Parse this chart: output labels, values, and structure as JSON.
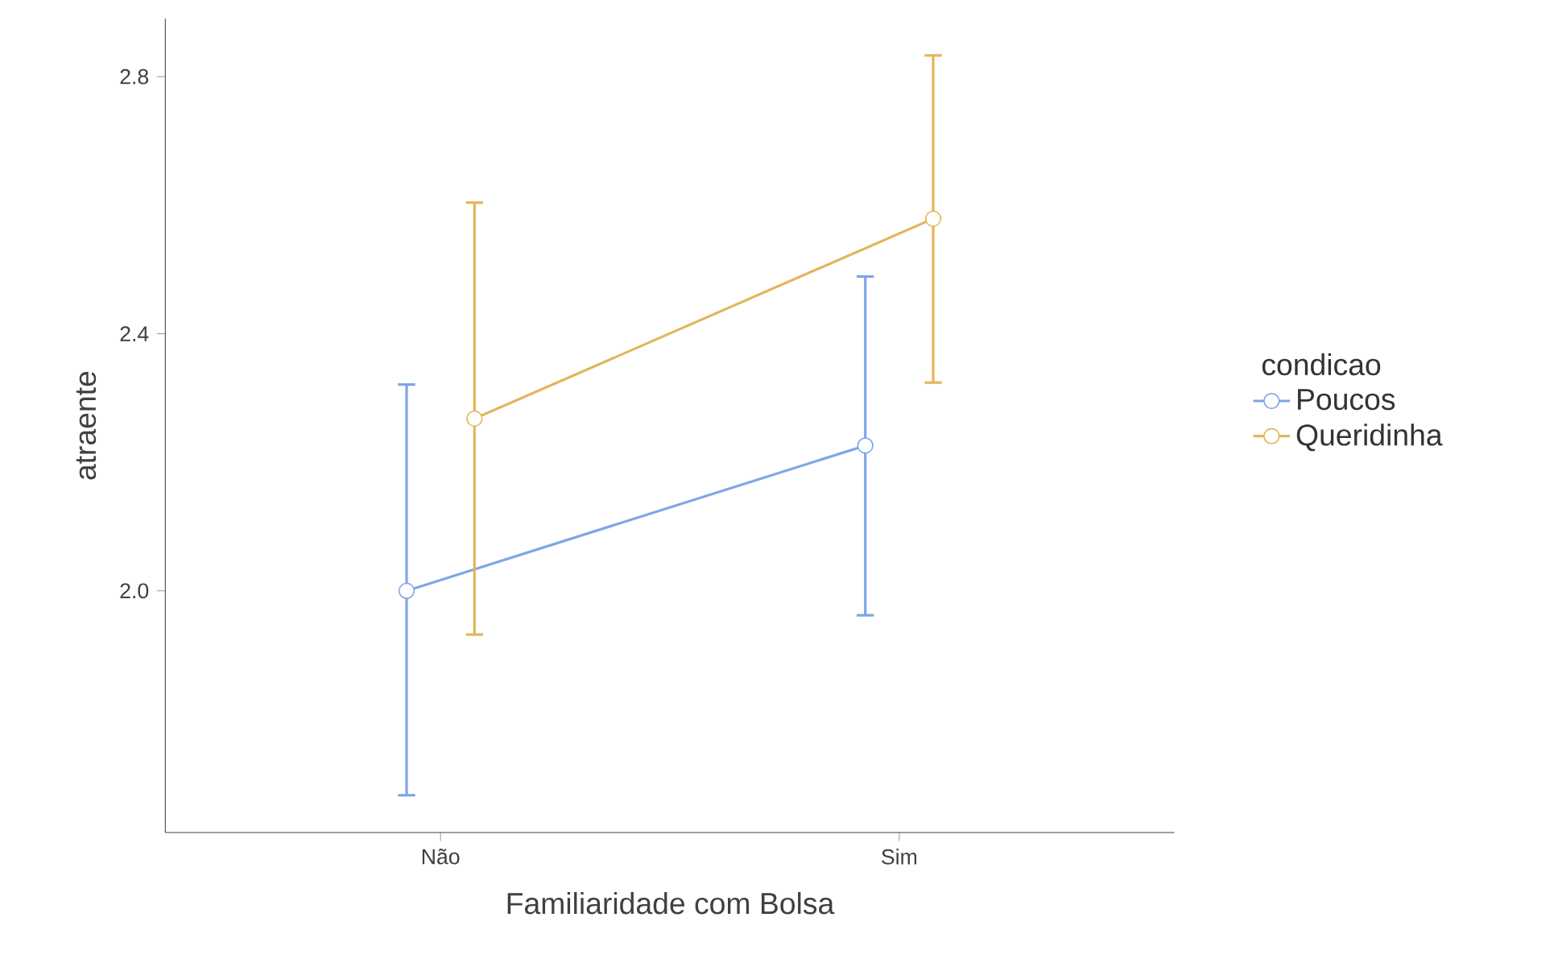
{
  "chart_data": {
    "type": "line",
    "xlabel": "Familiaridade com Bolsa",
    "ylabel": "atraente",
    "legend_title": "condicao",
    "categories": [
      "Não",
      "Sim"
    ],
    "series": [
      {
        "name": "Poucos",
        "color": "#7fa5e8",
        "values": [
          2.0,
          2.226
        ],
        "errors": [
          [
            1.682,
            2.321
          ],
          [
            1.962,
            2.489
          ]
        ]
      },
      {
        "name": "Queridinha",
        "color": "#e3b55a",
        "values": [
          2.268,
          2.579
        ],
        "errors": [
          [
            1.932,
            2.604
          ],
          [
            2.324,
            2.833
          ]
        ]
      }
    ],
    "ylim": [
      1.624,
      2.89
    ],
    "yticks": [
      {
        "value": 2.0,
        "label": "2.0"
      },
      {
        "value": 2.4,
        "label": "2.4"
      },
      {
        "value": 2.8,
        "label": "2.8"
      }
    ],
    "grid": false,
    "legend": "right",
    "marker": "circle",
    "line_style": "solid"
  }
}
